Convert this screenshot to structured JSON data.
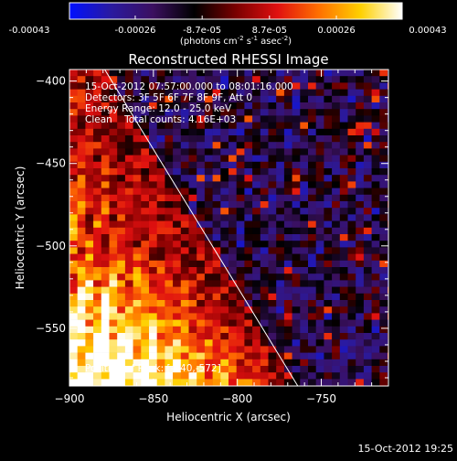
{
  "colorbar": {
    "tick_labels": [
      "-0.00043",
      "-0.00026",
      "-8.7e-05",
      "8.7e-05",
      "0.00026",
      "0.00043"
    ],
    "tick_values": [
      -0.00043,
      -0.00026,
      -8.7e-05,
      8.7e-05,
      0.00026,
      0.00043
    ],
    "range": [
      -0.00043,
      0.00043
    ],
    "unit_label": "(photons cm",
    "unit_exp1": "-2",
    "unit_mid": " s",
    "unit_exp2": "-1",
    "unit_tail": " asec",
    "unit_exp3": "-2",
    "unit_close": ")"
  },
  "chart_data": {
    "type": "heatmap",
    "title": "Reconstructed RHESSI Image",
    "xlabel": "Heliocentric X (arcsec)",
    "ylabel": "Heliocentric Y (arcsec)",
    "xlim": [
      -900,
      -710
    ],
    "ylim": [
      -585,
      -393
    ],
    "x_ticks": [
      -900,
      -850,
      -800,
      -750
    ],
    "y_ticks": [
      -400,
      -450,
      -500,
      -550
    ],
    "x_tick_labels": [
      "−900",
      "−850",
      "−800",
      "−750"
    ],
    "y_tick_labels": [
      "−400",
      "−450",
      "−500",
      "−550"
    ],
    "colormap": "blue-purple-red-yellow-white",
    "annotations": {
      "time_range": "15-Oct-2012 07:57:00.000 to 08:01:16.000",
      "detectors": "Detectors: 3F 5F 6F 7F 8F 9F, Att 0",
      "energy_range": "Energy Range: 12.0 - 25.0 keV",
      "clean_total": "Clean    Total counts: 4.16E+03",
      "peak_position": "Position of Peak: [-840,-572]"
    },
    "limb_line": {
      "x": [
        -879,
        -764
      ],
      "y": [
        -393,
        -585
      ]
    },
    "peak": {
      "x": -840,
      "y": -572
    }
  },
  "footer": {
    "timestamp": "15-Oct-2012 19:25"
  },
  "colors": {
    "background": "#000000",
    "foreground": "#ffffff",
    "cmap_stops": [
      "#0010ff",
      "#2a1aa0",
      "#3b1060",
      "#000000",
      "#7a0000",
      "#e01010",
      "#ff7000",
      "#ffd000",
      "#ffffff"
    ]
  }
}
